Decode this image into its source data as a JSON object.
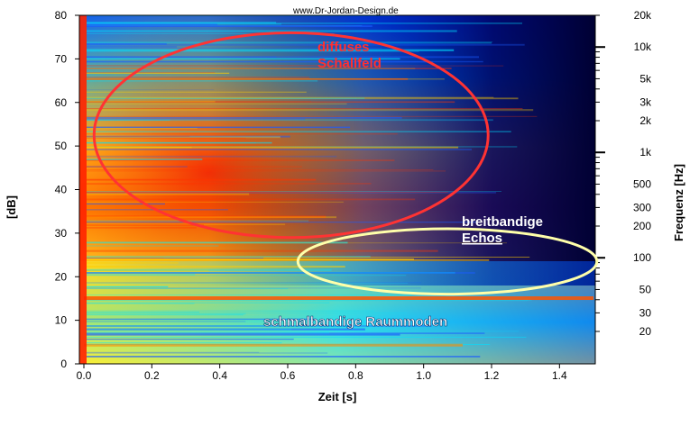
{
  "watermark": "www.Dr-Jordan-Design.de",
  "chart_data": {
    "type": "heatmap",
    "xlabel": "Zeit [s]",
    "ylabel": "[dB]",
    "y2label": "Frequenz [Hz]",
    "xlim": [
      0,
      1.5
    ],
    "ylim": [
      0,
      80
    ],
    "x_ticks": [
      "0.0",
      "0.2",
      "0.4",
      "0.6",
      "0.8",
      "1.0",
      "1.2",
      "1.4"
    ],
    "y_ticks": [
      "0",
      "10",
      "20",
      "30",
      "40",
      "50",
      "60",
      "70",
      "80"
    ],
    "y2_ticks": [
      {
        "label": "20",
        "value": 20
      },
      {
        "label": "30",
        "value": 30
      },
      {
        "label": "50",
        "value": 50
      },
      {
        "label": "100",
        "value": 100
      },
      {
        "label": "200",
        "value": 200
      },
      {
        "label": "300",
        "value": 300
      },
      {
        "label": "500",
        "value": 500
      },
      {
        "label": "1k",
        "value": 1000
      },
      {
        "label": "2k",
        "value": 2000
      },
      {
        "label": "3k",
        "value": 3000
      },
      {
        "label": "5k",
        "value": 5000
      },
      {
        "label": "10k",
        "value": 10000
      },
      {
        "label": "20k",
        "value": 20000
      }
    ],
    "y2_scale": "log",
    "colormap": [
      "#000033",
      "#0000cc",
      "#0066ff",
      "#00ccff",
      "#66ffcc",
      "#ffff33",
      "#ff9900",
      "#ff3300",
      "#cc0000"
    ],
    "annotations": [
      {
        "text_lines": [
          "diffuses",
          "Schallfeld"
        ],
        "color": "#ff3030",
        "ellipse": {
          "cx": 0.61,
          "cy": 52.5,
          "rx": 0.58,
          "ry": 23.5
        },
        "ellipse_color": "#ff3333"
      },
      {
        "text_lines": [
          "breitbandige",
          "Echos"
        ],
        "color": "#ffffff",
        "ellipse": {
          "cx": 1.07,
          "cy": 23.5,
          "rx": 0.44,
          "ry": 7.5
        },
        "ellipse_color": "#ffffaa"
      },
      {
        "text_lines": [
          "schmalbandige Raummoden"
        ],
        "color": "#ffffff"
      }
    ]
  }
}
